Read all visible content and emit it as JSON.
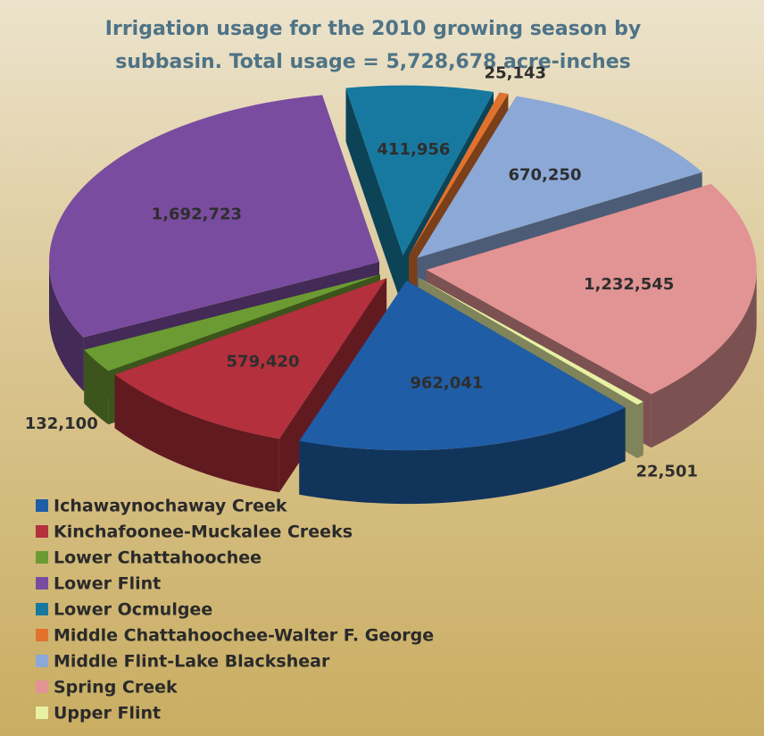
{
  "chart_data": {
    "type": "pie",
    "title": [
      "Irrigation usage for the 2010 growing season by",
      "subbasin. Total usage = 5,728,678 acre-inches"
    ],
    "categories": [
      "Ichawaynochaway Creek",
      "Kinchafoonee-Muckalee Creeks",
      "Lower Chattahoochee",
      "Lower Flint",
      "Lower Ocmulgee",
      "Middle Chattahoochee-Walter F. George",
      "Middle Flint-Lake Blackshear",
      "Spring Creek",
      "Upper Flint"
    ],
    "values": [
      962041,
      579420,
      132100,
      1692723,
      411956,
      25143,
      670250,
      1232545,
      22501
    ],
    "value_labels": [
      "962,041",
      "579,420",
      "132,100",
      "1,692,723",
      "411,956",
      "25,143",
      "670,250",
      "1,232,545",
      "22,501"
    ],
    "colors": [
      "#1f5ea6",
      "#b3303c",
      "#6b9b32",
      "#7a4c9f",
      "#17799f",
      "#e0722e",
      "#8ba8d6",
      "#e29393",
      "#e8f0a4"
    ],
    "legend": "bottom-left"
  }
}
